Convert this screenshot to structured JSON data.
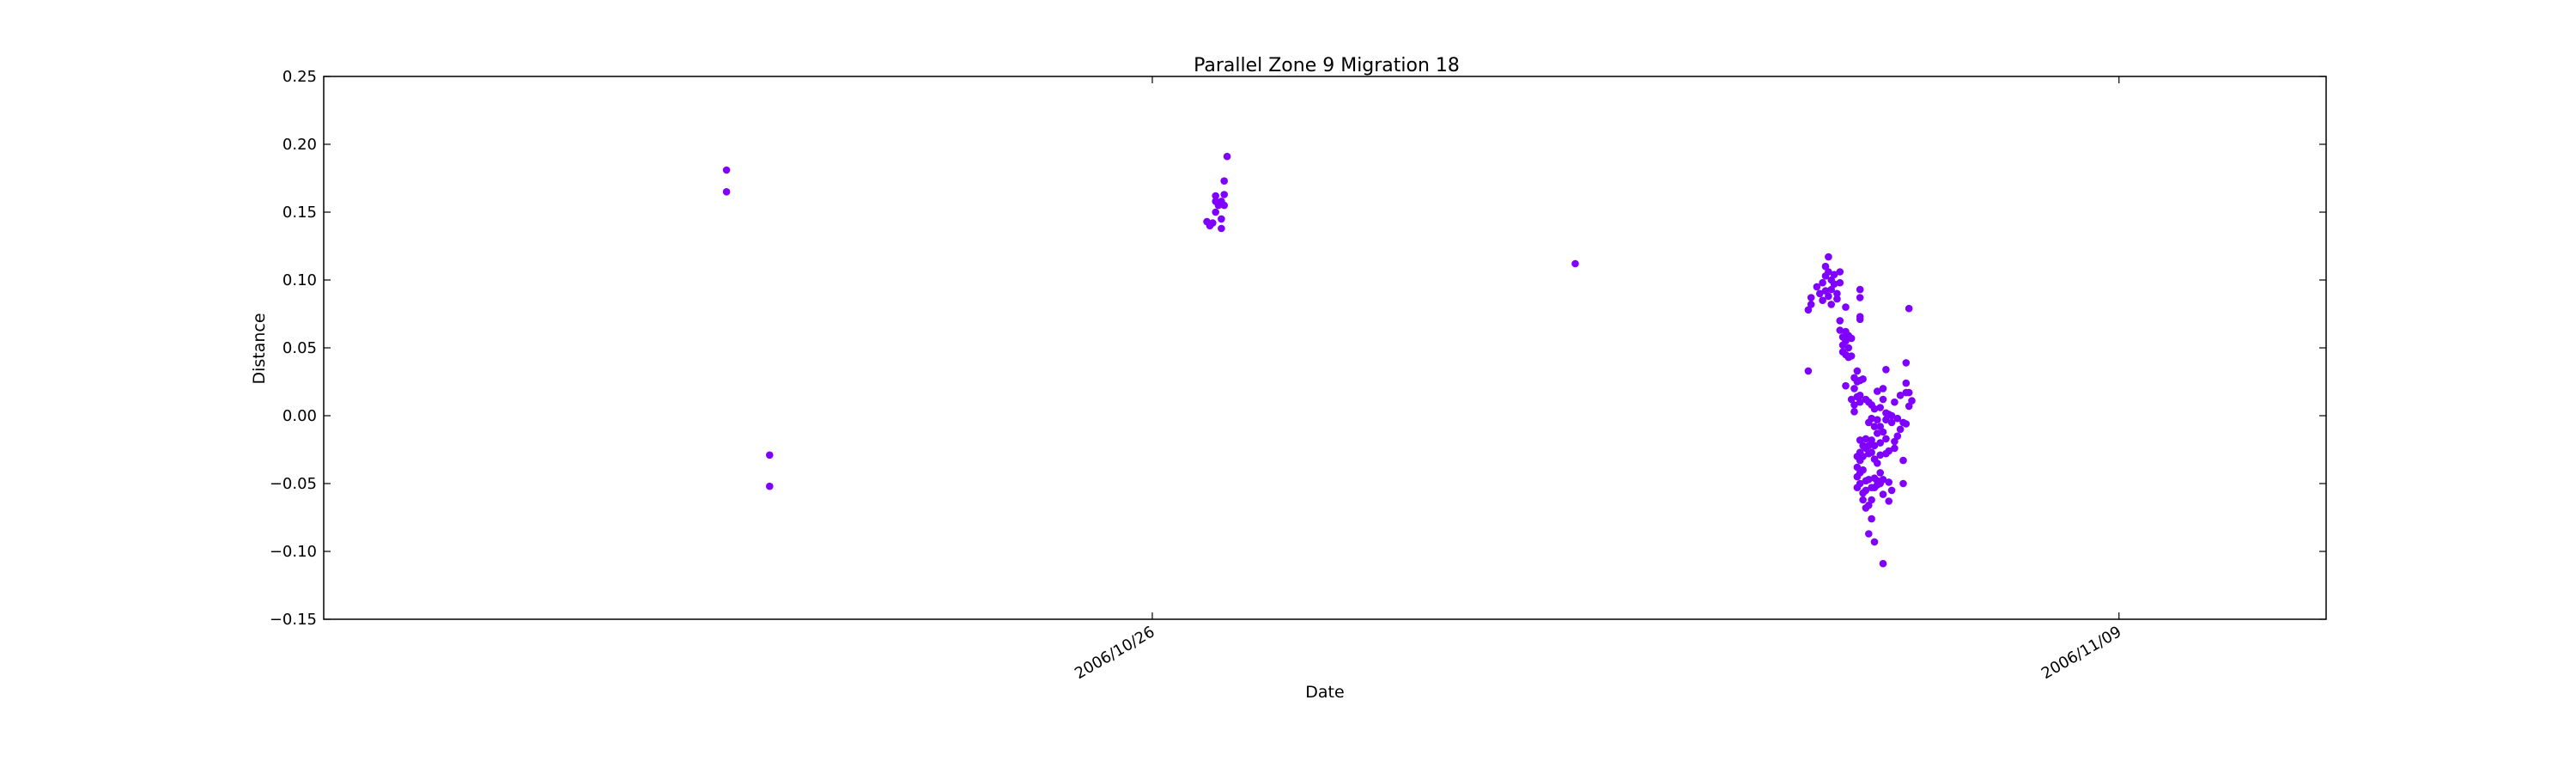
{
  "chart_data": {
    "type": "scatter",
    "title": "Parallel Zone 9 Migration 18",
    "xlabel": "Date",
    "ylabel": "Distance",
    "x_axis": "date",
    "xlim": [
      "2006-10-14T00:00",
      "2006-11-12T00:00"
    ],
    "ylim": [
      -0.15,
      0.25
    ],
    "yticks": [
      -0.15,
      -0.1,
      -0.05,
      0.0,
      0.05,
      0.1,
      0.15,
      0.2,
      0.25
    ],
    "ytick_labels": [
      "−0.15",
      "−0.10",
      "−0.05",
      "0.00",
      "0.05",
      "0.10",
      "0.15",
      "0.20",
      "0.25"
    ],
    "xticks": [
      "2006-10-26T00:00",
      "2006-11-09T00:00"
    ],
    "xtick_labels": [
      "2006/10/26",
      "2006/11/09"
    ],
    "grid": false,
    "marker_color": "#7f00ff",
    "points": [
      [
        "2006-10-19T20:00",
        0.181
      ],
      [
        "2006-10-19T20:00",
        0.165
      ],
      [
        "2006-10-20T11:00",
        -0.029
      ],
      [
        "2006-10-20T11:00",
        -0.052
      ],
      [
        "2006-10-26T19:00",
        0.143
      ],
      [
        "2006-10-26T20:00",
        0.14
      ],
      [
        "2006-10-26T21:00",
        0.142
      ],
      [
        "2006-10-26T22:00",
        0.162
      ],
      [
        "2006-10-26T22:00",
        0.158
      ],
      [
        "2006-10-26T22:00",
        0.15
      ],
      [
        "2006-10-26T23:00",
        0.155
      ],
      [
        "2006-10-27T00:00",
        0.138
      ],
      [
        "2006-10-27T00:00",
        0.145
      ],
      [
        "2006-10-27T00:00",
        0.158
      ],
      [
        "2006-10-27T01:00",
        0.163
      ],
      [
        "2006-10-27T01:00",
        0.173
      ],
      [
        "2006-10-27T01:00",
        0.155
      ],
      [
        "2006-10-27T02:00",
        0.191
      ],
      [
        "2006-11-01T03:00",
        0.112
      ],
      [
        "2006-11-04T12:00",
        0.033
      ],
      [
        "2006-11-04T12:00",
        0.078
      ],
      [
        "2006-11-04T13:00",
        0.082
      ],
      [
        "2006-11-04T13:00",
        0.087
      ],
      [
        "2006-11-04T15:00",
        0.095
      ],
      [
        "2006-11-04T16:00",
        0.09
      ],
      [
        "2006-11-04T17:00",
        0.098
      ],
      [
        "2006-11-04T17:00",
        0.085
      ],
      [
        "2006-11-04T18:00",
        0.103
      ],
      [
        "2006-11-04T18:00",
        0.11
      ],
      [
        "2006-11-04T18:00",
        0.092
      ],
      [
        "2006-11-04T19:00",
        0.117
      ],
      [
        "2006-11-04T19:00",
        0.106
      ],
      [
        "2006-11-04T19:00",
        0.088
      ],
      [
        "2006-11-04T20:00",
        0.1
      ],
      [
        "2006-11-04T20:00",
        0.093
      ],
      [
        "2006-11-04T20:00",
        0.082
      ],
      [
        "2006-11-04T21:00",
        0.104
      ],
      [
        "2006-11-04T21:00",
        0.097
      ],
      [
        "2006-11-04T22:00",
        0.09
      ],
      [
        "2006-11-04T22:00",
        0.086
      ],
      [
        "2006-11-04T23:00",
        0.106
      ],
      [
        "2006-11-04T23:00",
        0.098
      ],
      [
        "2006-11-04T23:00",
        0.07
      ],
      [
        "2006-11-04T23:00",
        0.063
      ],
      [
        "2006-11-05T00:00",
        0.058
      ],
      [
        "2006-11-05T00:00",
        0.052
      ],
      [
        "2006-11-05T00:00",
        0.047
      ],
      [
        "2006-11-05T01:00",
        0.08
      ],
      [
        "2006-11-05T01:00",
        0.062
      ],
      [
        "2006-11-05T01:00",
        0.055
      ],
      [
        "2006-11-05T01:00",
        0.045
      ],
      [
        "2006-11-05T01:00",
        0.022
      ],
      [
        "2006-11-05T02:00",
        0.059
      ],
      [
        "2006-11-05T02:00",
        0.05
      ],
      [
        "2006-11-05T02:00",
        0.043
      ],
      [
        "2006-11-05T03:00",
        0.057
      ],
      [
        "2006-11-05T03:00",
        0.044
      ],
      [
        "2006-11-05T03:00",
        0.012
      ],
      [
        "2006-11-05T04:00",
        0.028
      ],
      [
        "2006-11-05T04:00",
        0.02
      ],
      [
        "2006-11-05T04:00",
        0.008
      ],
      [
        "2006-11-05T04:00",
        0.003
      ],
      [
        "2006-11-05T05:00",
        0.033
      ],
      [
        "2006-11-05T05:00",
        0.025
      ],
      [
        "2006-11-05T05:00",
        0.014
      ],
      [
        "2006-11-05T05:00",
        -0.03
      ],
      [
        "2006-11-05T05:00",
        -0.038
      ],
      [
        "2006-11-05T05:00",
        -0.045
      ],
      [
        "2006-11-05T05:00",
        -0.053
      ],
      [
        "2006-11-05T06:00",
        0.093
      ],
      [
        "2006-11-05T06:00",
        0.087
      ],
      [
        "2006-11-05T06:00",
        0.073
      ],
      [
        "2006-11-05T06:00",
        0.071
      ],
      [
        "2006-11-05T06:00",
        0.026
      ],
      [
        "2006-11-05T06:00",
        0.015
      ],
      [
        "2006-11-05T06:00",
        0.01
      ],
      [
        "2006-11-05T06:00",
        -0.018
      ],
      [
        "2006-11-05T06:00",
        -0.027
      ],
      [
        "2006-11-05T06:00",
        -0.033
      ],
      [
        "2006-11-05T06:00",
        -0.042
      ],
      [
        "2006-11-05T06:00",
        -0.05
      ],
      [
        "2006-11-05T07:00",
        0.027
      ],
      [
        "2006-11-05T07:00",
        -0.022
      ],
      [
        "2006-11-05T07:00",
        -0.03
      ],
      [
        "2006-11-05T07:00",
        -0.04
      ],
      [
        "2006-11-05T07:00",
        -0.057
      ],
      [
        "2006-11-05T07:00",
        -0.062
      ],
      [
        "2006-11-05T08:00",
        0.012
      ],
      [
        "2006-11-05T08:00",
        -0.017
      ],
      [
        "2006-11-05T08:00",
        -0.024
      ],
      [
        "2006-11-05T08:00",
        -0.048
      ],
      [
        "2006-11-05T08:00",
        -0.055
      ],
      [
        "2006-11-05T08:00",
        -0.068
      ],
      [
        "2006-11-05T09:00",
        0.01
      ],
      [
        "2006-11-05T09:00",
        -0.005
      ],
      [
        "2006-11-05T09:00",
        -0.022
      ],
      [
        "2006-11-05T09:00",
        -0.028
      ],
      [
        "2006-11-05T09:00",
        -0.047
      ],
      [
        "2006-11-05T09:00",
        -0.066
      ],
      [
        "2006-11-05T09:00",
        -0.087
      ],
      [
        "2006-11-05T10:00",
        0.008
      ],
      [
        "2006-11-05T10:00",
        -0.002
      ],
      [
        "2006-11-05T10:00",
        -0.018
      ],
      [
        "2006-11-05T10:00",
        -0.027
      ],
      [
        "2006-11-05T10:00",
        -0.053
      ],
      [
        "2006-11-05T10:00",
        -0.062
      ],
      [
        "2006-11-05T10:00",
        -0.076
      ],
      [
        "2006-11-05T11:00",
        0.005
      ],
      [
        "2006-11-05T11:00",
        -0.008
      ],
      [
        "2006-11-05T11:00",
        -0.022
      ],
      [
        "2006-11-05T11:00",
        -0.032
      ],
      [
        "2006-11-05T11:00",
        -0.046
      ],
      [
        "2006-11-05T11:00",
        -0.053
      ],
      [
        "2006-11-05T11:00",
        -0.093
      ],
      [
        "2006-11-05T12:00",
        0.018
      ],
      [
        "2006-11-05T12:00",
        -0.003
      ],
      [
        "2006-11-05T12:00",
        -0.013
      ],
      [
        "2006-11-05T12:00",
        -0.035
      ],
      [
        "2006-11-05T12:00",
        -0.048
      ],
      [
        "2006-11-05T12:00",
        -0.051
      ],
      [
        "2006-11-05T13:00",
        0.006
      ],
      [
        "2006-11-05T13:00",
        -0.008
      ],
      [
        "2006-11-05T13:00",
        -0.02
      ],
      [
        "2006-11-05T13:00",
        -0.029
      ],
      [
        "2006-11-05T13:00",
        -0.042
      ],
      [
        "2006-11-05T13:00",
        -0.05
      ],
      [
        "2006-11-05T14:00",
        0.02
      ],
      [
        "2006-11-05T14:00",
        0.012
      ],
      [
        "2006-11-05T14:00",
        -0.012
      ],
      [
        "2006-11-05T14:00",
        -0.047
      ],
      [
        "2006-11-05T14:00",
        -0.058
      ],
      [
        "2006-11-05T14:00",
        -0.109
      ],
      [
        "2006-11-05T15:00",
        0.034
      ],
      [
        "2006-11-05T15:00",
        0.002
      ],
      [
        "2006-11-05T15:00",
        -0.003
      ],
      [
        "2006-11-05T15:00",
        -0.017
      ],
      [
        "2006-11-05T15:00",
        -0.028
      ],
      [
        "2006-11-05T16:00",
        0.001
      ],
      [
        "2006-11-05T16:00",
        -0.026
      ],
      [
        "2006-11-05T16:00",
        -0.049
      ],
      [
        "2006-11-05T16:00",
        -0.063
      ],
      [
        "2006-11-05T17:00",
        0.0
      ],
      [
        "2006-11-05T17:00",
        -0.005
      ],
      [
        "2006-11-05T17:00",
        -0.055
      ],
      [
        "2006-11-05T18:00",
        0.01
      ],
      [
        "2006-11-05T18:00",
        -0.024
      ],
      [
        "2006-11-05T18:00",
        -0.019
      ],
      [
        "2006-11-05T19:00",
        -0.015
      ],
      [
        "2006-11-05T19:00",
        -0.002
      ],
      [
        "2006-11-05T20:00",
        -0.01
      ],
      [
        "2006-11-05T20:00",
        0.015
      ],
      [
        "2006-11-05T21:00",
        -0.005
      ],
      [
        "2006-11-05T21:00",
        -0.033
      ],
      [
        "2006-11-05T21:00",
        -0.05
      ],
      [
        "2006-11-05T22:00",
        0.039
      ],
      [
        "2006-11-05T22:00",
        0.024
      ],
      [
        "2006-11-05T22:00",
        0.017
      ],
      [
        "2006-11-05T22:00",
        -0.006
      ],
      [
        "2006-11-05T23:00",
        0.079
      ],
      [
        "2006-11-05T23:00",
        0.017
      ],
      [
        "2006-11-05T23:00",
        0.007
      ],
      [
        "2006-11-06T00:00",
        0.011
      ]
    ]
  }
}
